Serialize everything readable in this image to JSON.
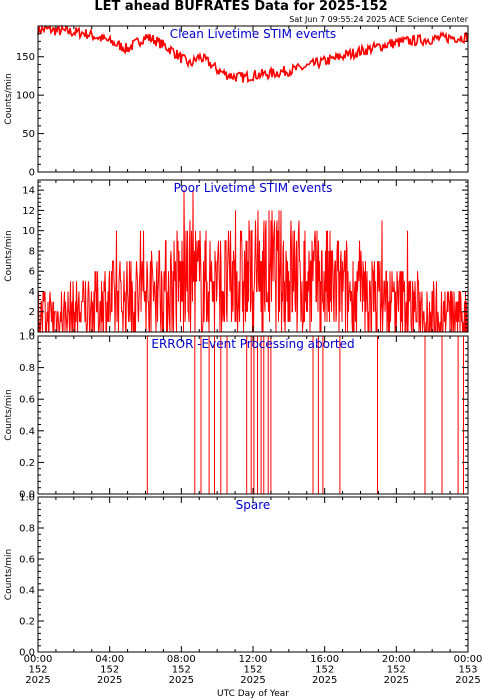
{
  "title": "LET ahead BUFRATES Data for 2025-152",
  "timestamp": "Sat Jun  7 09:55:24 2025 ACE Science Center",
  "x_axis_label": "UTC Day of Year",
  "colors": {
    "data": "#ff0000",
    "panel_title": "#0000cc",
    "axis": "#000000"
  },
  "chart_data": [
    {
      "type": "line",
      "title": "Clean Livetime STIM events",
      "ylabel": "Counts/min",
      "ylim": [
        0,
        190
      ],
      "yticks": [
        0,
        50,
        100,
        150
      ],
      "xlim": [
        0,
        24
      ],
      "x_unit": "hours UTC",
      "series": [
        {
          "x": [
            0,
            0.5,
            1,
            1.5,
            2,
            2.5,
            3,
            3.5,
            4,
            4.5,
            5,
            5.5,
            6,
            6.5,
            7,
            7.5,
            8,
            8.5,
            9,
            9.5,
            10,
            10.5,
            11,
            11.5,
            12,
            12.5,
            13,
            13.5,
            14,
            14.5,
            15,
            15.5,
            16,
            16.5,
            17,
            17.5,
            18,
            18.5,
            19,
            19.5,
            20,
            20.5,
            21,
            21.5,
            22,
            22.5,
            23,
            23.5,
            24
          ],
          "y": [
            185,
            186,
            184,
            183,
            182,
            181,
            178,
            174,
            170,
            165,
            160,
            168,
            176,
            172,
            165,
            158,
            148,
            140,
            150,
            143,
            133,
            127,
            124,
            123,
            126,
            127,
            128,
            130,
            132,
            134,
            137,
            141,
            144,
            147,
            151,
            154,
            157,
            160,
            163,
            166,
            168,
            170,
            171,
            172,
            173,
            174,
            175,
            175,
            176
          ]
        }
      ]
    },
    {
      "type": "line",
      "title": "Poor Livetime STIM events",
      "ylabel": "Counts/min",
      "ylim": [
        0,
        15
      ],
      "yticks": [
        0,
        2,
        4,
        6,
        8,
        10,
        12,
        14
      ],
      "xlim": [
        0,
        24
      ],
      "x_unit": "hours UTC",
      "series": [
        {
          "x": [
            0,
            1,
            2,
            3,
            4,
            5,
            6,
            7,
            8,
            9,
            10,
            11,
            12,
            13,
            14,
            15,
            16,
            17,
            18,
            19,
            20,
            21,
            22,
            23,
            24
          ],
          "y": [
            1.5,
            1.6,
            2.0,
            2.6,
            3.0,
            3.3,
            3.7,
            4.2,
            4.8,
            5.0,
            4.6,
            4.7,
            5.3,
            5.7,
            5.5,
            5.0,
            4.6,
            4.1,
            3.6,
            3.2,
            2.8,
            2.4,
            2.0,
            1.7,
            1.5
          ]
        }
      ]
    },
    {
      "type": "line",
      "title": "ERROR -Event Processing aborted",
      "ylabel": "Counts/min",
      "ylim": [
        0,
        1
      ],
      "yticks": [
        0,
        0.2,
        0.4,
        0.6,
        0.8,
        1.0
      ],
      "xlim": [
        0,
        24
      ],
      "x_unit": "hours UTC",
      "series": [
        {
          "spikes_x": [
            6.1,
            8.75,
            9.1,
            9.55,
            9.85,
            10.2,
            10.55,
            11.65,
            11.9,
            12.05,
            12.25,
            12.45,
            12.6,
            12.85,
            13.0,
            15.35,
            15.65,
            15.9,
            16.85,
            18.95,
            21.6,
            22.55,
            23.45,
            23.75
          ],
          "baseline": 0,
          "peak": 1
        }
      ]
    },
    {
      "type": "line",
      "title": "Spare",
      "ylabel": "Counts/min",
      "ylim": [
        0,
        1
      ],
      "yticks": [
        0,
        0.2,
        0.4,
        0.6,
        0.8,
        1.0
      ],
      "xlim": [
        0,
        24
      ],
      "x_unit": "hours UTC",
      "series": [
        {
          "x": [
            0,
            24
          ],
          "y": [
            0,
            0
          ]
        }
      ]
    }
  ],
  "x_ticks": [
    {
      "time": "00:00",
      "doy": "152",
      "year": "2025"
    },
    {
      "time": "04:00",
      "doy": "152",
      "year": "2025"
    },
    {
      "time": "08:00",
      "doy": "152",
      "year": "2025"
    },
    {
      "time": "12:00",
      "doy": "152",
      "year": "2025"
    },
    {
      "time": "16:00",
      "doy": "152",
      "year": "2025"
    },
    {
      "time": "20:00",
      "doy": "152",
      "year": "2025"
    },
    {
      "time": "00:00",
      "doy": "153",
      "year": "2025"
    }
  ]
}
